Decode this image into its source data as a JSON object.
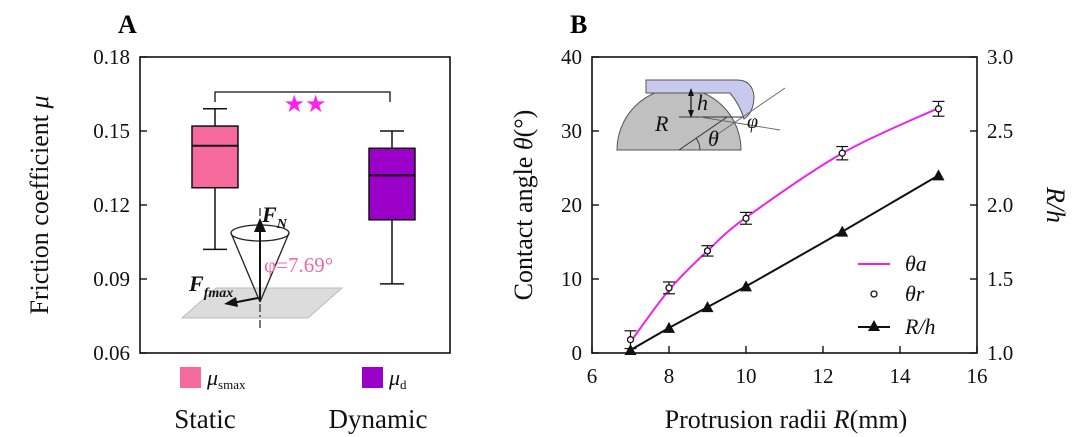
{
  "chart_data": [
    {
      "panel": "A",
      "type": "box",
      "ylabel_prefix": "Friction coefficient ",
      "ylabel_symbol": "μ",
      "ylim": [
        0.06,
        0.18
      ],
      "yticks": [
        "0.06",
        "0.09",
        "0.12",
        "0.15",
        "0.18"
      ],
      "categories": [
        "Static",
        "Dynamic"
      ],
      "boxes": [
        {
          "min": 0.102,
          "q1": 0.127,
          "median": 0.144,
          "q3": 0.152,
          "max": 0.159,
          "color": "#f56a9a"
        },
        {
          "min": 0.088,
          "q1": 0.114,
          "median": 0.132,
          "q3": 0.143,
          "max": 0.15,
          "color": "#9b00c8"
        }
      ],
      "significance": "★★",
      "significance_color": "#ff22ee",
      "legend": [
        {
          "sym": "μ",
          "sub": "smax",
          "color": "#f56a9a"
        },
        {
          "sym": "μ",
          "sub": "d",
          "color": "#9b00c8"
        }
      ],
      "inset": {
        "fn_label": "F",
        "fn_sub": "N",
        "ff_label": "F",
        "ff_sub": "fmax",
        "angle_label": "φ=7.69°",
        "angle_color": "#f06aa0"
      }
    },
    {
      "panel": "B",
      "type": "line",
      "xlabel_prefix": "Protrusion radii ",
      "xlabel_symbol": "R",
      "xlabel_suffix": "(mm)",
      "ylabel_prefix": "Contact angle ",
      "ylabel_symbol": "θ",
      "ylabel_suffix": "(°)",
      "y2label": "R/h",
      "xlim": [
        6,
        16
      ],
      "ylim": [
        0,
        40
      ],
      "y2lim": [
        1.0,
        3.0
      ],
      "xticks": [
        "6",
        "8",
        "10",
        "12",
        "14",
        "16"
      ],
      "yticks": [
        "0",
        "10",
        "20",
        "30",
        "40"
      ],
      "y2ticks": [
        "1.0",
        "1.5",
        "2.0",
        "2.5",
        "3.0"
      ],
      "series": [
        {
          "name": "θa",
          "kind": "fit",
          "color": "#ee22ee",
          "x": [
            7,
            8,
            9,
            10,
            12.5,
            15
          ],
          "y": [
            1.5,
            8.5,
            13.8,
            18.3,
            27.0,
            33.1
          ]
        },
        {
          "name": "θr",
          "kind": "points",
          "color": "#111111",
          "x": [
            7,
            8,
            9,
            10,
            12.5,
            15
          ],
          "y": [
            1.8,
            8.8,
            13.8,
            18.2,
            27.0,
            33.0
          ],
          "err": [
            1.2,
            0.8,
            0.7,
            0.8,
            0.9,
            1.0
          ]
        },
        {
          "name": "R/h",
          "kind": "line",
          "color": "#111111",
          "axis": "right",
          "x": [
            7,
            8,
            9,
            10,
            12.5,
            15
          ],
          "y": [
            1.02,
            1.17,
            1.31,
            1.45,
            1.82,
            2.2
          ]
        }
      ],
      "inset": {
        "R": "R",
        "h": "h",
        "theta": "θ",
        "phi": "φ"
      }
    }
  ]
}
